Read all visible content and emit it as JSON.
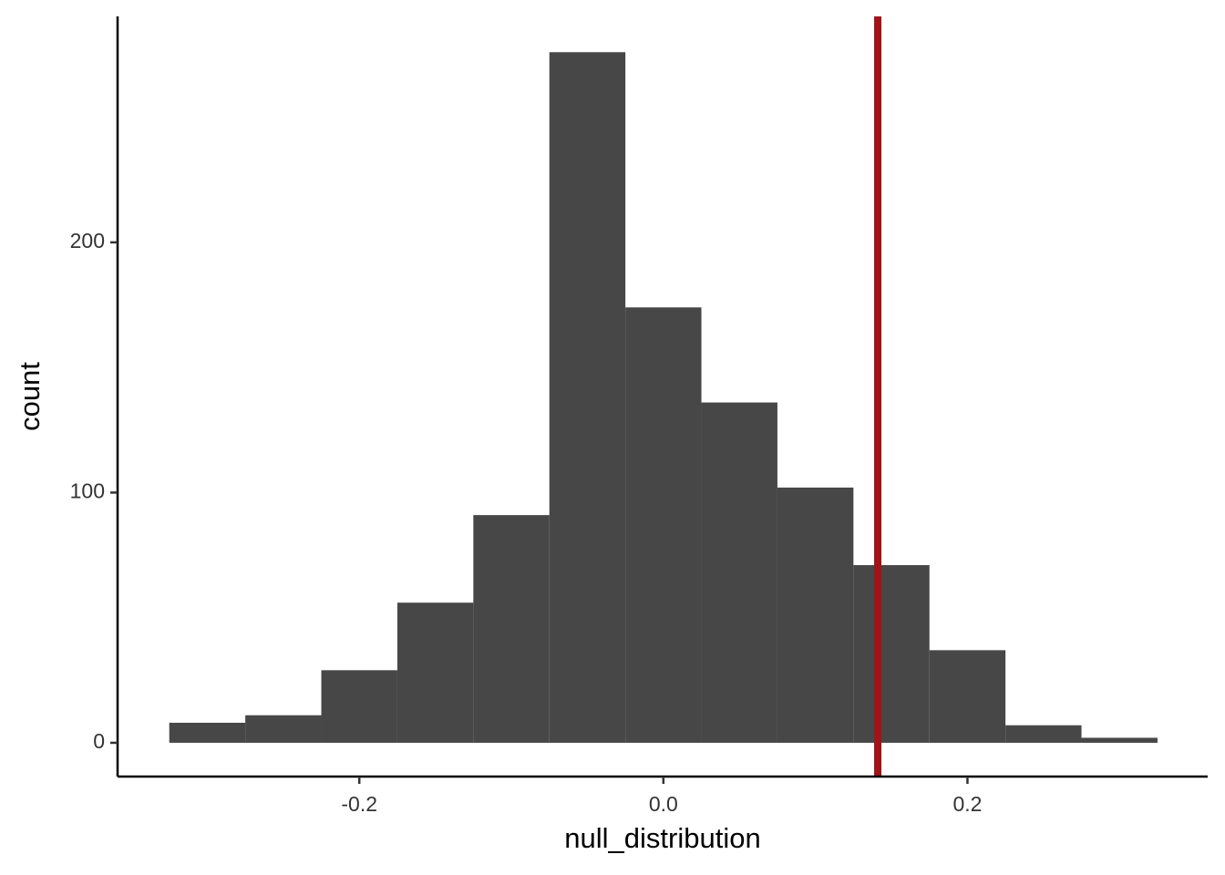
{
  "chart_data": {
    "type": "histogram",
    "x_label": "null_distribution",
    "y_label": "count",
    "bins": [
      -0.325,
      -0.275,
      -0.225,
      -0.175,
      -0.125,
      -0.075,
      -0.025,
      0.025,
      0.075,
      0.125,
      0.175,
      0.225,
      0.275,
      0.325
    ],
    "counts": [
      8,
      11,
      29,
      56,
      91,
      276,
      174,
      136,
      102,
      71,
      37,
      7,
      2
    ],
    "color": "#474747",
    "vline": {
      "x": 0.141,
      "color": "#a01419"
    },
    "xlim": [
      -0.359,
      0.358
    ],
    "ylim": [
      -13.5,
      290.3
    ],
    "xticks": [
      -0.2,
      {
        "value": 0,
        "label": "0.0"
      },
      0.2
    ],
    "yticks": [
      0,
      100,
      200
    ],
    "grid": false
  }
}
